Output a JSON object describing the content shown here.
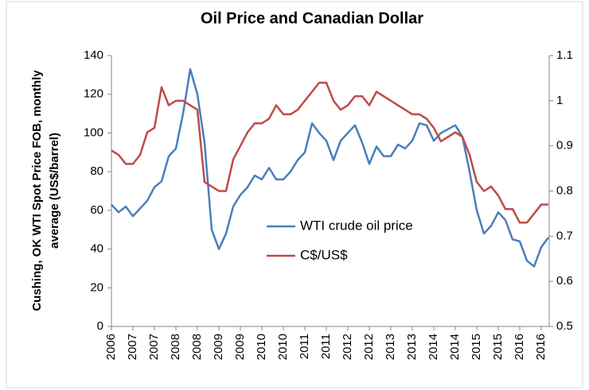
{
  "chart_data": {
    "type": "line",
    "title": "Oil Price and Canadian Dollar",
    "ylabel": [
      "Cushing, OK WTI Spot Price FOB, monthly",
      "average (US$/barrel)"
    ],
    "categories": [
      "2006",
      null,
      null,
      "2007",
      null,
      null,
      "2007",
      null,
      null,
      "2008",
      null,
      null,
      "2008",
      null,
      null,
      "2009",
      null,
      null,
      "2009",
      null,
      null,
      "2010",
      null,
      null,
      "2010",
      null,
      null,
      "2011",
      null,
      null,
      "2011",
      null,
      null,
      "2012",
      null,
      null,
      "2012",
      null,
      null,
      "2013",
      null,
      null,
      "2013",
      null,
      null,
      "2014",
      null,
      null,
      "2014",
      null,
      null,
      "2015",
      null,
      null,
      "2015",
      null,
      null,
      "2016",
      null,
      null,
      "2016",
      null
    ],
    "series": [
      {
        "name": "WTI crude oil price",
        "color": "#4a7ebb",
        "axis": "y",
        "values": [
          63,
          59,
          62,
          57,
          61,
          65,
          72,
          75,
          88,
          92,
          110,
          133,
          120,
          95,
          50,
          40,
          48,
          62,
          68,
          72,
          78,
          76,
          82,
          76,
          76,
          80,
          86,
          90,
          105,
          100,
          96,
          86,
          96,
          100,
          104,
          95,
          84,
          93,
          88,
          88,
          94,
          92,
          96,
          105,
          104,
          96,
          100,
          102,
          104,
          98,
          80,
          60,
          48,
          52,
          59,
          55,
          45,
          44,
          34,
          31,
          41,
          46
        ]
      },
      {
        "name": "C$/US$",
        "color": "#be4b48",
        "axis": "y2",
        "values": [
          0.89,
          0.88,
          0.86,
          0.86,
          0.88,
          0.93,
          0.94,
          1.03,
          0.99,
          1.0,
          1.0,
          0.99,
          0.98,
          0.82,
          0.81,
          0.8,
          0.8,
          0.87,
          0.9,
          0.93,
          0.95,
          0.95,
          0.96,
          0.99,
          0.97,
          0.97,
          0.98,
          1.0,
          1.02,
          1.04,
          1.04,
          1.0,
          0.98,
          0.99,
          1.01,
          1.01,
          0.99,
          1.02,
          1.01,
          1.0,
          0.99,
          0.98,
          0.97,
          0.97,
          0.96,
          0.94,
          0.91,
          0.92,
          0.93,
          0.92,
          0.88,
          0.82,
          0.8,
          0.81,
          0.79,
          0.76,
          0.76,
          0.73,
          0.73,
          0.75,
          0.77,
          0.77
        ]
      }
    ],
    "ylim": [
      0,
      140
    ],
    "yticks": [
      0,
      20,
      40,
      60,
      80,
      100,
      120,
      140
    ],
    "y2lim": [
      0.5,
      1.1
    ],
    "y2ticks": [
      0.5,
      0.6,
      0.7,
      0.8,
      0.9,
      1,
      1.1
    ],
    "legend": "center"
  }
}
